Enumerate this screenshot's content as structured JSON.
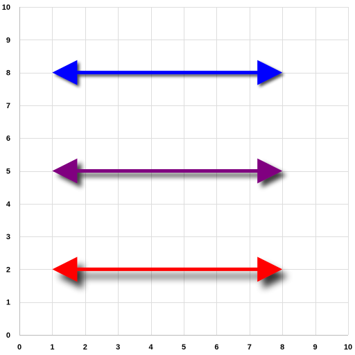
{
  "chart_data": {
    "type": "line",
    "title": "",
    "xlabel": "",
    "ylabel": "",
    "xlim": [
      0,
      10
    ],
    "ylim": [
      0,
      10
    ],
    "x_ticks": [
      "0",
      "1",
      "2",
      "3",
      "4",
      "5",
      "6",
      "7",
      "8",
      "9",
      "10"
    ],
    "y_ticks": [
      "0",
      "1",
      "2",
      "3",
      "4",
      "5",
      "6",
      "7",
      "8",
      "9",
      "10"
    ],
    "grid": true,
    "legend": "none",
    "series": [
      {
        "x": [
          1,
          8
        ],
        "y": [
          8,
          8
        ],
        "color": "#0000ff",
        "arrowheads": "both",
        "shadow": "small"
      },
      {
        "x": [
          1,
          8
        ],
        "y": [
          5,
          5
        ],
        "color": "#800080",
        "arrowheads": "both",
        "shadow": "medium"
      },
      {
        "x": [
          1,
          8
        ],
        "y": [
          2,
          2
        ],
        "color": "#ff0000",
        "arrowheads": "both",
        "shadow": "large"
      }
    ]
  }
}
